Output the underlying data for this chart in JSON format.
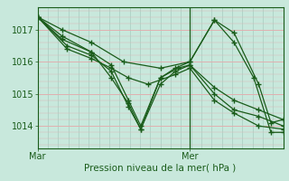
{
  "bg_color": "#c8e8dc",
  "plot_bg_color": "#c8e8dc",
  "grid_v_color": "#a8ccc0",
  "grid_h_color": "#e0b0b0",
  "line_color": "#1a5c1a",
  "xlabel": "Pression niveau de la mer( hPa )",
  "xtick_labels": [
    "Mar",
    "Mer"
  ],
  "ytick_values": [
    1014,
    1015,
    1016,
    1017
  ],
  "ylim": [
    1013.3,
    1017.7
  ],
  "xlim_days": [
    0,
    2.0
  ],
  "mar_x": 0.0,
  "mer_x": 1.24,
  "xlim": [
    0.0,
    2.0
  ],
  "n_vgrid": 24,
  "series": [
    [
      [
        0.0,
        1017.4
      ],
      [
        0.2,
        1017.0
      ],
      [
        0.44,
        1016.6
      ],
      [
        0.7,
        1016.0
      ],
      [
        1.0,
        1015.8
      ],
      [
        1.24,
        1016.0
      ],
      [
        1.44,
        1017.3
      ],
      [
        1.6,
        1016.9
      ],
      [
        1.8,
        1015.3
      ],
      [
        1.9,
        1014.1
      ],
      [
        2.0,
        1014.2
      ]
    ],
    [
      [
        0.0,
        1017.4
      ],
      [
        0.2,
        1016.8
      ],
      [
        0.44,
        1016.3
      ],
      [
        0.6,
        1015.9
      ],
      [
        0.74,
        1014.8
      ],
      [
        0.84,
        1014.0
      ],
      [
        1.0,
        1015.5
      ],
      [
        1.12,
        1015.8
      ],
      [
        1.24,
        1016.0
      ],
      [
        1.44,
        1017.3
      ],
      [
        1.6,
        1016.6
      ],
      [
        1.76,
        1015.5
      ],
      [
        1.9,
        1013.8
      ],
      [
        2.0,
        1013.8
      ]
    ],
    [
      [
        0.0,
        1017.4
      ],
      [
        0.2,
        1016.7
      ],
      [
        0.44,
        1016.3
      ],
      [
        0.6,
        1015.5
      ],
      [
        0.74,
        1014.7
      ],
      [
        0.84,
        1013.9
      ],
      [
        1.0,
        1015.3
      ],
      [
        1.12,
        1015.7
      ],
      [
        1.24,
        1015.9
      ],
      [
        1.44,
        1015.2
      ],
      [
        1.6,
        1014.8
      ],
      [
        1.8,
        1014.5
      ],
      [
        2.0,
        1014.2
      ]
    ],
    [
      [
        0.0,
        1017.4
      ],
      [
        0.24,
        1016.5
      ],
      [
        0.44,
        1016.2
      ],
      [
        0.6,
        1015.7
      ],
      [
        0.74,
        1014.6
      ],
      [
        0.84,
        1013.9
      ],
      [
        1.0,
        1015.5
      ],
      [
        1.14,
        1015.8
      ],
      [
        1.24,
        1015.9
      ],
      [
        1.44,
        1015.0
      ],
      [
        1.6,
        1014.5
      ],
      [
        1.8,
        1014.3
      ],
      [
        2.0,
        1014.0
      ]
    ],
    [
      [
        0.0,
        1017.4
      ],
      [
        0.24,
        1016.4
      ],
      [
        0.44,
        1016.1
      ],
      [
        0.6,
        1015.8
      ],
      [
        0.74,
        1015.5
      ],
      [
        0.9,
        1015.3
      ],
      [
        1.12,
        1015.6
      ],
      [
        1.24,
        1015.8
      ],
      [
        1.44,
        1014.8
      ],
      [
        1.6,
        1014.4
      ],
      [
        1.8,
        1014.0
      ],
      [
        2.0,
        1013.9
      ]
    ]
  ]
}
